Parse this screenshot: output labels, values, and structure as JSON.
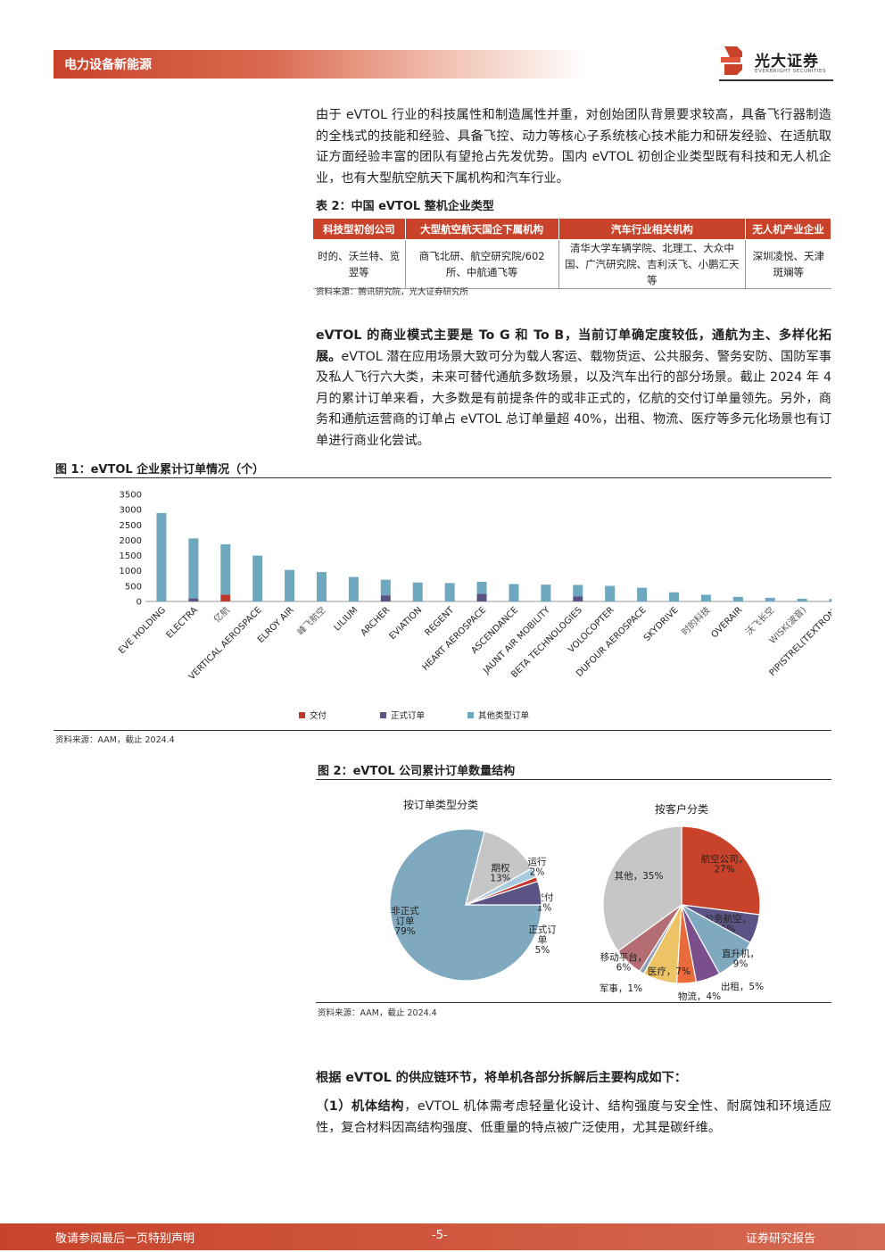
{
  "header": {
    "section": "电力设备新能源",
    "logo_cn": "光大证券",
    "logo_en": "EVERBRIGHT SECURITIES"
  },
  "para1": "由于 eVTOL 行业的科技属性和制造属性并重，对创始团队背景要求较高，具备飞行器制造的全栈式的技能和经验、具备飞控、动力等核心子系统核心技术能力和研发经验、在适航取证方面经验丰富的团队有望抢占先发优势。国内 eVTOL 初创企业类型既有科技和无人机企业，也有大型航空航天下属机构和汽车行业。",
  "table2": {
    "caption": "表 2：中国 eVTOL 整机企业类型",
    "headers": [
      "科技型初创公司",
      "大型航空航天国企下属机构",
      "汽车行业相关机构",
      "无人机产业企业"
    ],
    "cells": [
      "时的、沃兰特、览翌等",
      "商飞北研、航空研究院/602 所、中航通飞等",
      "清华大学车辆学院、北理工、大众中国、广汽研究院、吉利沃飞、小鹏汇天等",
      "深圳凌悦、天津斑斓等"
    ],
    "source": "资料来源：腾讯研究院，光大证券研究所"
  },
  "para2": {
    "bold": "eVTOL 的商业模式主要是 To G 和 To B，当前订单确定度较低，通航为主、多样化拓展。",
    "rest": "eVTOL 潜在应用场景大致可分为载人客运、载物货运、公共服务、警务安防、国防军事及私人飞行六大类，未来可替代通航多数场景，以及汽车出行的部分场景。截止 2024 年 4 月的累计订单来看，大多数是有前提条件的或非正式的，亿航的交付订单量领先。另外，商务和通航运营商的订单占 eVTOL 总订单量超 40%，出租、物流、医疗等多元化场景也有订单进行商业化尝试。"
  },
  "fig1": {
    "caption": "图 1：eVTOL 企业累计订单情况（个）",
    "source": "资料来源：AAM，截止 2024.4"
  },
  "fig2": {
    "caption": "图 2：eVTOL 公司累计订单数量结构",
    "source": "资料来源：AAM，截止 2024.4"
  },
  "para3": "根据 eVTOL 的供应链环节，将单机各部分拆解后主要构成如下：",
  "para4": {
    "bold": "（1）机体结构",
    "rest": "，eVTOL 机体需考虑轻量化设计、结构强度与安全性、耐腐蚀和环境适应性，复合材料因高结构强度、低重量的特点被广泛使用，尤其是碳纤维。"
  },
  "footer": {
    "left": "敬请参阅最后一页特别声明",
    "page": "-5-",
    "right": "证券研究报告"
  },
  "chart_data": [
    {
      "type": "bar",
      "stacked": true,
      "categories": [
        "EVE HOLDING",
        "ELECTRA",
        "亿航",
        "VERTICAL AEROSPACE",
        "ELROY AIR",
        "峰飞航空",
        "LILIUM",
        "ARCHER",
        "EVIATION",
        "REGENT",
        "HEART AEROSPACE",
        "ASCENDANCE",
        "JAUNT AIR MOBILITY",
        "BETA TECHNOLOGIES",
        "VOLOCOPTER",
        "DUFOUR AEROSPACE",
        "SKYDRIVE",
        "时的科技",
        "OVERAIR",
        "沃飞长空",
        "WISK(波音)",
        "PIPISTREL(TEXTRON)"
      ],
      "series": [
        {
          "name": "交付",
          "color": "#c0392b",
          "values": [
            0,
            0,
            220,
            0,
            0,
            0,
            0,
            0,
            0,
            0,
            0,
            0,
            0,
            0,
            0,
            0,
            0,
            0,
            0,
            0,
            0,
            0
          ]
        },
        {
          "name": "正式订单",
          "color": "#5b5383",
          "values": [
            0,
            100,
            0,
            0,
            0,
            0,
            0,
            200,
            0,
            0,
            250,
            0,
            0,
            170,
            0,
            0,
            0,
            0,
            0,
            0,
            0,
            20
          ]
        },
        {
          "name": "其他类型订单",
          "color": "#6ea8bf",
          "values": [
            2890,
            1960,
            1650,
            1500,
            1030,
            960,
            800,
            510,
            620,
            600,
            390,
            570,
            550,
            370,
            510,
            450,
            300,
            220,
            150,
            120,
            90,
            65
          ]
        }
      ],
      "yticks": [
        0,
        500,
        1000,
        1500,
        2000,
        2500,
        3000,
        3500
      ],
      "ylim": [
        0,
        3500
      ],
      "legend_position": "bottom"
    },
    {
      "type": "pie",
      "title": "按订单类型分类",
      "slices": [
        {
          "label": "非正式订单",
          "value": 79,
          "color": "#7fa9bf"
        },
        {
          "label": "期权",
          "value": 13,
          "color": "#c6c6c6"
        },
        {
          "label": "运行",
          "value": 2,
          "color": "#a9cbe0"
        },
        {
          "label": "交付",
          "value": 1,
          "color": "#c0392b"
        },
        {
          "label": "正式订单",
          "value": 5,
          "color": "#5b5383"
        }
      ]
    },
    {
      "type": "pie",
      "title": "按客户分类",
      "slices": [
        {
          "label": "航空公司",
          "value": 27,
          "color": "#c8432a"
        },
        {
          "label": "公务航空",
          "value": 6,
          "color": "#5b5383"
        },
        {
          "label": "直升机",
          "value": 9,
          "color": "#7fa9bf"
        },
        {
          "label": "出租",
          "value": 5,
          "color": "#7b4f8c"
        },
        {
          "label": "物流",
          "value": 4,
          "color": "#e96a3a"
        },
        {
          "label": "医疗",
          "value": 7,
          "color": "#ecc466"
        },
        {
          "label": "军事",
          "value": 1,
          "color": "#8fa0b7"
        },
        {
          "label": "移动平台",
          "value": 6,
          "color": "#b56d74"
        },
        {
          "label": "其他",
          "value": 35,
          "color": "#c6c6c6"
        }
      ]
    }
  ]
}
